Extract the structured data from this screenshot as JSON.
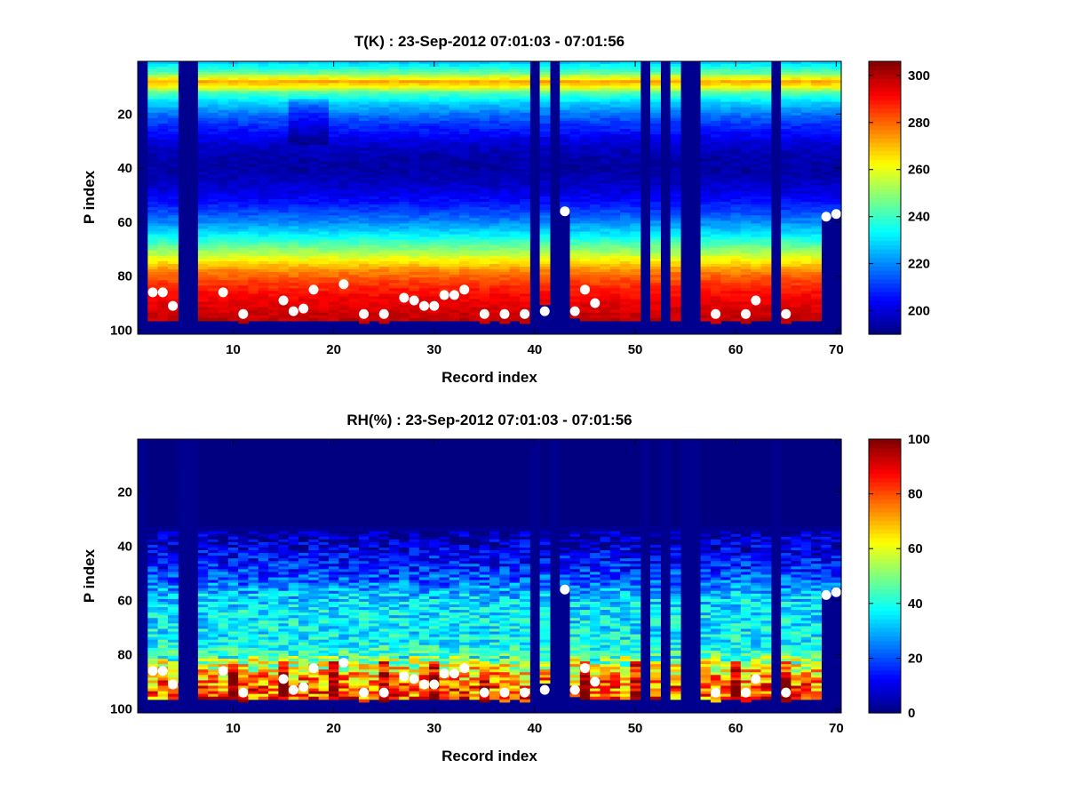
{
  "figure": {
    "background": "#ffffff",
    "colormap": "jet",
    "marker_color": "#ffffff",
    "missing_color": "#00008f"
  },
  "chart_data": [
    {
      "type": "heatmap",
      "title": "T(K) : 23-Sep-2012 07:01:03 - 07:01:56",
      "xlabel": "Record index",
      "ylabel": "P index",
      "xlim": [
        0.5,
        70.5
      ],
      "ylim": [
        0.5,
        101.5
      ],
      "y_reversed": true,
      "xticks": [
        "10",
        "20",
        "30",
        "40",
        "50",
        "60",
        "70"
      ],
      "yticks": [
        "20",
        "40",
        "60",
        "80",
        "100"
      ],
      "colorbar": {
        "min": 190,
        "max": 306,
        "ticks": [
          "200",
          "220",
          "240",
          "260",
          "280",
          "300"
        ]
      },
      "profile": [
        [
          1,
          228
        ],
        [
          5,
          246
        ],
        [
          8,
          272
        ],
        [
          10,
          262
        ],
        [
          12,
          244
        ],
        [
          16,
          228
        ],
        [
          20,
          218
        ],
        [
          24,
          210
        ],
        [
          28,
          204
        ],
        [
          32,
          198
        ],
        [
          36,
          195
        ],
        [
          40,
          194
        ],
        [
          44,
          196
        ],
        [
          48,
          200
        ],
        [
          52,
          205
        ],
        [
          56,
          212
        ],
        [
          60,
          220
        ],
        [
          64,
          230
        ],
        [
          68,
          242
        ],
        [
          72,
          255
        ],
        [
          75,
          266
        ],
        [
          78,
          276
        ],
        [
          82,
          284
        ],
        [
          86,
          290
        ],
        [
          90,
          294
        ],
        [
          95,
          298
        ],
        [
          101,
          300
        ]
      ],
      "dark_columns": [
        1,
        5,
        6,
        40,
        42,
        51,
        53,
        55,
        56,
        64
      ],
      "special_columns": {
        "41": 90,
        "43": 56,
        "44": 95,
        "45": 96,
        "69": 58,
        "70": 57
      },
      "surface_markers": [
        {
          "x": 2,
          "y": 86
        },
        {
          "x": 3,
          "y": 86
        },
        {
          "x": 4,
          "y": 91
        },
        {
          "x": 9,
          "y": 86
        },
        {
          "x": 11,
          "y": 94
        },
        {
          "x": 15,
          "y": 89
        },
        {
          "x": 16,
          "y": 93
        },
        {
          "x": 17,
          "y": 92
        },
        {
          "x": 18,
          "y": 85
        },
        {
          "x": 21,
          "y": 83
        },
        {
          "x": 23,
          "y": 94
        },
        {
          "x": 25,
          "y": 94
        },
        {
          "x": 27,
          "y": 88
        },
        {
          "x": 28,
          "y": 89
        },
        {
          "x": 29,
          "y": 91
        },
        {
          "x": 30,
          "y": 91
        },
        {
          "x": 31,
          "y": 87
        },
        {
          "x": 32,
          "y": 87
        },
        {
          "x": 33,
          "y": 85
        },
        {
          "x": 35,
          "y": 94
        },
        {
          "x": 37,
          "y": 94
        },
        {
          "x": 39,
          "y": 94
        },
        {
          "x": 41,
          "y": 93
        },
        {
          "x": 43,
          "y": 56
        },
        {
          "x": 44,
          "y": 93
        },
        {
          "x": 45,
          "y": 85
        },
        {
          "x": 46,
          "y": 90
        },
        {
          "x": 58,
          "y": 94
        },
        {
          "x": 61,
          "y": 94
        },
        {
          "x": 62,
          "y": 89
        },
        {
          "x": 65,
          "y": 94
        },
        {
          "x": 69,
          "y": 58
        },
        {
          "x": 70,
          "y": 57
        }
      ]
    },
    {
      "type": "heatmap",
      "title": "RH(%) : 23-Sep-2012 07:01:03 - 07:01:56",
      "xlabel": "Record index",
      "ylabel": "P index",
      "xlim": [
        0.5,
        70.5
      ],
      "ylim": [
        0.5,
        101.5
      ],
      "y_reversed": true,
      "xticks": [
        "10",
        "20",
        "30",
        "40",
        "50",
        "60",
        "70"
      ],
      "yticks": [
        "20",
        "40",
        "60",
        "80",
        "100"
      ],
      "colorbar": {
        "min": 0,
        "max": 100,
        "ticks": [
          "0",
          "20",
          "40",
          "60",
          "80",
          "100"
        ]
      },
      "profile": [
        [
          1,
          0
        ],
        [
          32,
          0
        ],
        [
          36,
          4
        ],
        [
          42,
          10
        ],
        [
          48,
          16
        ],
        [
          54,
          24
        ],
        [
          58,
          32
        ],
        [
          64,
          36
        ],
        [
          70,
          36
        ],
        [
          76,
          38
        ],
        [
          80,
          44
        ],
        [
          84,
          58
        ],
        [
          88,
          70
        ],
        [
          92,
          76
        ],
        [
          96,
          80
        ],
        [
          101,
          82
        ]
      ],
      "dark_columns": [
        1,
        5,
        6,
        40,
        42,
        51,
        53,
        55,
        56,
        64
      ],
      "special_columns": {
        "41": 90,
        "43": 56,
        "44": 95,
        "45": 96,
        "69": 58,
        "70": 57
      },
      "surface_markers": [
        {
          "x": 2,
          "y": 86
        },
        {
          "x": 3,
          "y": 86
        },
        {
          "x": 4,
          "y": 91
        },
        {
          "x": 9,
          "y": 86
        },
        {
          "x": 11,
          "y": 94
        },
        {
          "x": 15,
          "y": 89
        },
        {
          "x": 16,
          "y": 93
        },
        {
          "x": 17,
          "y": 92
        },
        {
          "x": 18,
          "y": 85
        },
        {
          "x": 21,
          "y": 83
        },
        {
          "x": 23,
          "y": 94
        },
        {
          "x": 25,
          "y": 94
        },
        {
          "x": 27,
          "y": 88
        },
        {
          "x": 28,
          "y": 89
        },
        {
          "x": 29,
          "y": 91
        },
        {
          "x": 30,
          "y": 91
        },
        {
          "x": 31,
          "y": 87
        },
        {
          "x": 32,
          "y": 87
        },
        {
          "x": 33,
          "y": 85
        },
        {
          "x": 35,
          "y": 94
        },
        {
          "x": 37,
          "y": 94
        },
        {
          "x": 39,
          "y": 94
        },
        {
          "x": 41,
          "y": 93
        },
        {
          "x": 43,
          "y": 56
        },
        {
          "x": 44,
          "y": 93
        },
        {
          "x": 45,
          "y": 85
        },
        {
          "x": 46,
          "y": 90
        },
        {
          "x": 58,
          "y": 94
        },
        {
          "x": 61,
          "y": 94
        },
        {
          "x": 62,
          "y": 89
        },
        {
          "x": 65,
          "y": 94
        },
        {
          "x": 69,
          "y": 58
        },
        {
          "x": 70,
          "y": 57
        }
      ]
    }
  ]
}
